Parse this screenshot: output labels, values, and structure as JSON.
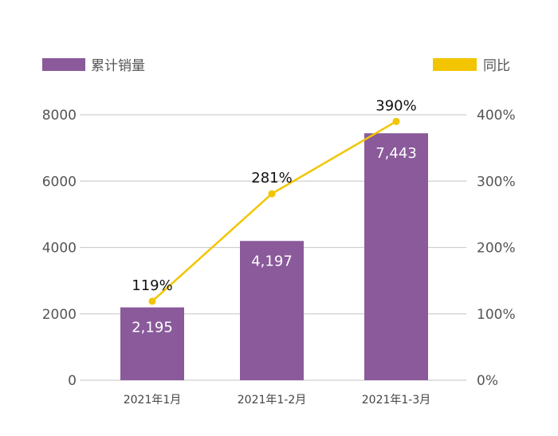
{
  "chart_data": {
    "type": "bar+line",
    "categories": [
      "2021年1月",
      "2021年1-2月",
      "2021年1-3月"
    ],
    "series": [
      {
        "name": "累计销量",
        "type": "bar",
        "axis": "left",
        "values": [
          2195,
          4197,
          7443
        ],
        "labels": [
          "2,195",
          "4,197",
          "7,443"
        ],
        "color": "#8a5a9b"
      },
      {
        "name": "同比",
        "type": "line",
        "axis": "right",
        "values": [
          119,
          281,
          390
        ],
        "labels": [
          "119%",
          "281%",
          "390%"
        ],
        "color": "#f2c500"
      }
    ],
    "y_left": {
      "range": [
        0,
        8000
      ],
      "ticks": [
        "0",
        "2000",
        "4000",
        "6000",
        "8000"
      ]
    },
    "y_right": {
      "range": [
        0,
        400
      ],
      "ticks": [
        "0%",
        "100%",
        "200%",
        "300%",
        "400%"
      ]
    },
    "grid": true,
    "legend": "top",
    "gridline_color": "#cfcfcf"
  }
}
